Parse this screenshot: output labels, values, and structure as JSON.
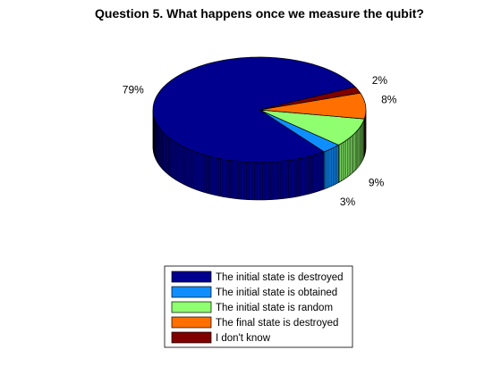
{
  "chart_data": {
    "type": "pie",
    "title": "Question 5. What happens once we measure the qubit?",
    "style": "3d",
    "legend_position": "bottom-center",
    "slices": [
      {
        "label": "The initial state is destroyed",
        "value": 79,
        "value_label": "79%",
        "color": "#00008F"
      },
      {
        "label": "The initial state is obtained",
        "value": 3,
        "value_label": "3%",
        "color": "#0F8FFF"
      },
      {
        "label": "The initial state is random",
        "value": 9,
        "value_label": "9%",
        "color": "#8FFF70"
      },
      {
        "label": "The final state is destroyed",
        "value": 8,
        "value_label": "8%",
        "color": "#FF7000"
      },
      {
        "label": "I don't know",
        "value": 2,
        "value_label": "2%",
        "color": "#800000"
      }
    ]
  }
}
